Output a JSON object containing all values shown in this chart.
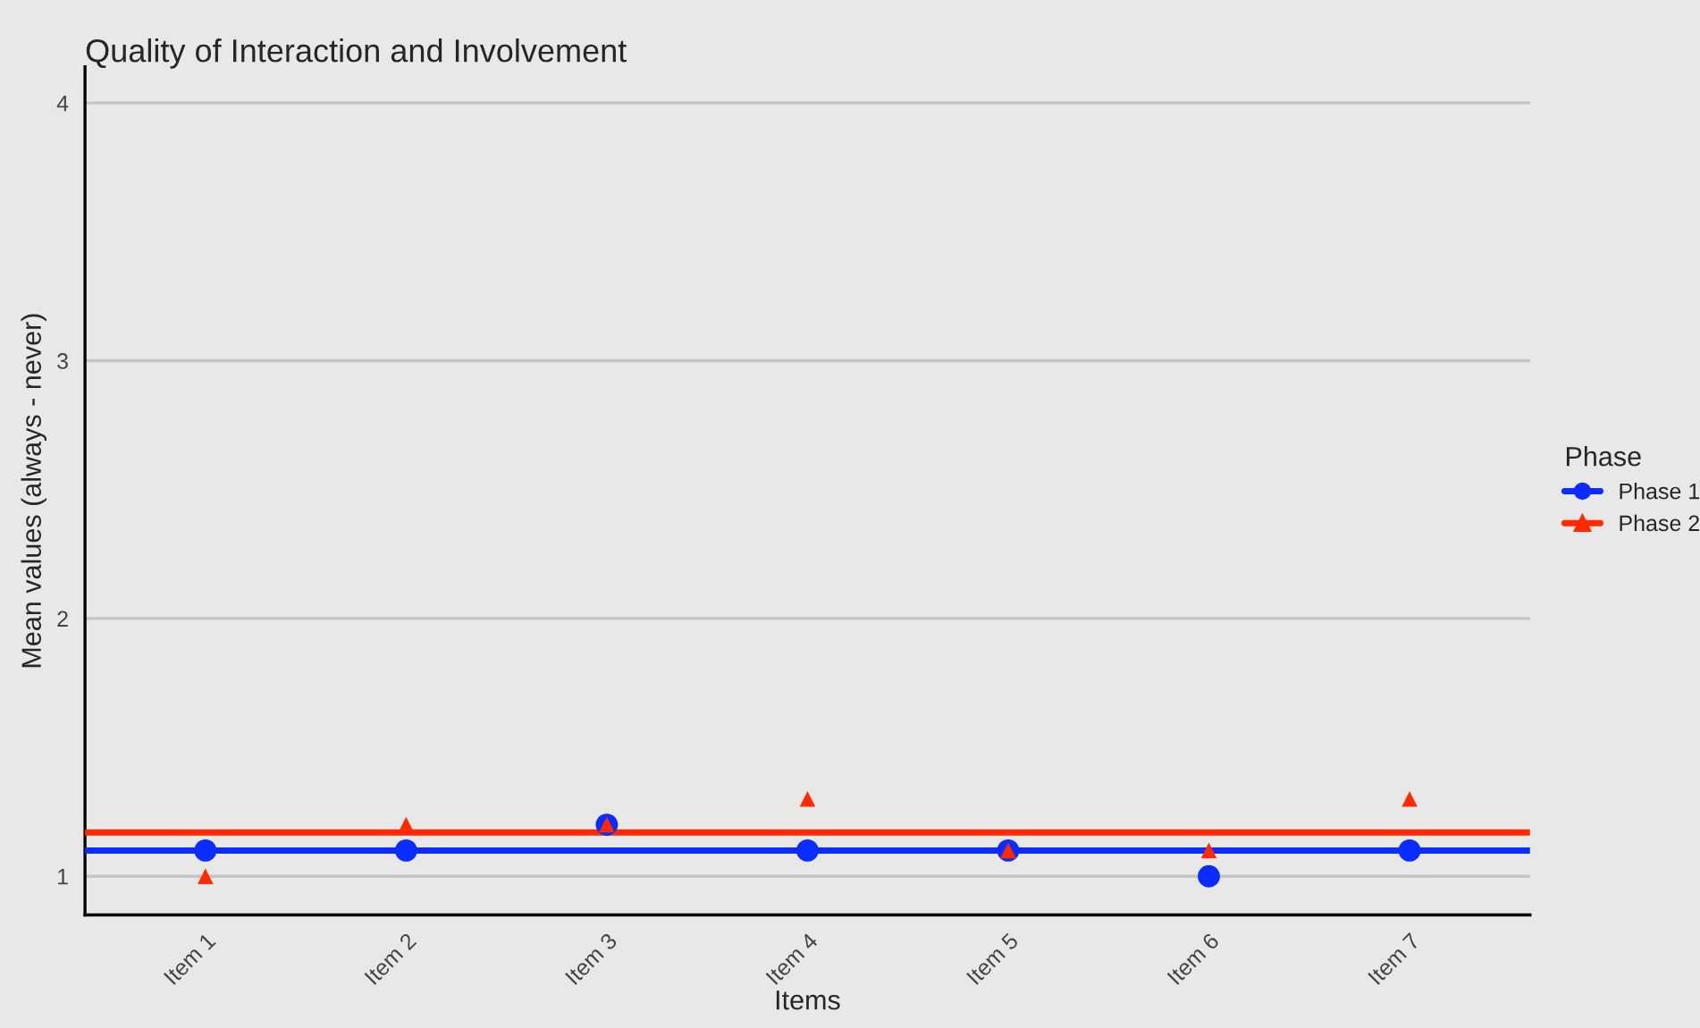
{
  "chart_data": {
    "type": "scatter",
    "title": "Quality of Interaction and Involvement",
    "xlabel": "Items",
    "ylabel": "Mean values (always - never)",
    "legend_title": "Phase",
    "categories": [
      "Item 1",
      "Item 2",
      "Item 3",
      "Item 4",
      "Item 5",
      "Item 6",
      "Item 7"
    ],
    "series": [
      {
        "name": "Phase 1",
        "color": "#0a2cff",
        "marker": "circle",
        "values": [
          1.1,
          1.1,
          1.2,
          1.1,
          1.1,
          1.0,
          1.1
        ]
      },
      {
        "name": "Phase 2",
        "color": "#ff2a00",
        "marker": "triangle",
        "values": [
          1.0,
          1.2,
          1.2,
          1.3,
          1.1,
          1.1,
          1.3
        ]
      }
    ],
    "ref_lines": [
      {
        "axis": "y",
        "value": 1.1,
        "color": "#0a2cff",
        "line_style": "solid"
      },
      {
        "axis": "y",
        "value": 1.17,
        "color": "#ff2a00",
        "line_style": "solid"
      }
    ],
    "ylim": [
      0.85,
      4.14
    ],
    "yticks": [
      1,
      2,
      3,
      4
    ],
    "grid": "y",
    "legend": "right"
  }
}
